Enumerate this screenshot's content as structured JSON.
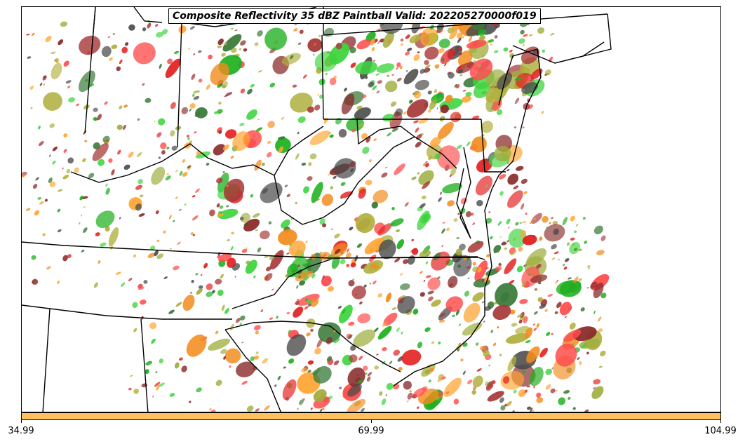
{
  "title": "Composite Reflectivity 35 dBZ Paintball Valid: 202205270000f019",
  "colorbar": {
    "color": "#ffc060",
    "tick_labels": [
      "34.99",
      "69.99",
      "104.99"
    ]
  },
  "member_colors": [
    "#ff4d4d",
    "#e32020",
    "#ffa533",
    "#f28c1e",
    "#a83a3a",
    "#8a2b2b",
    "#3fd43f",
    "#1fb01f",
    "#9fae3f",
    "#b0b040",
    "#3a7a3a",
    "#4a4a4a"
  ],
  "icons": [
    "state-boundary-lines",
    "coastline"
  ]
}
